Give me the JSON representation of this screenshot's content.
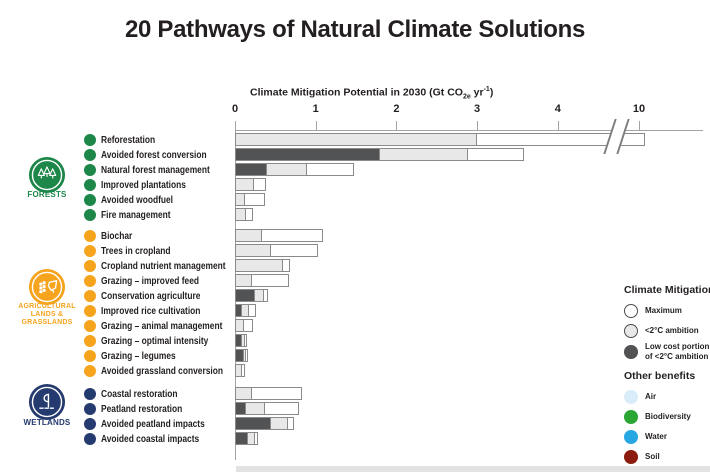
{
  "title": "20 Pathways of Natural Climate Solutions",
  "axis": {
    "title_pre": "Climate Mitigation Potential in 2030 (Gt CO",
    "title_sub": "2e",
    "title_mid": " yr",
    "title_sup": "-1",
    "title_post": ")"
  },
  "colors": {
    "bar_dark": "#525355",
    "bar_light": "#e9e8e8",
    "bar_white": "#ffffff",
    "bar_border": "#8a8a8a",
    "axis": "#a3a3a3",
    "text": "#231f20"
  },
  "legend": {
    "mitigation_title": "Climate Mitigation",
    "mitigation": [
      {
        "label": "Maximum",
        "fill": "#ffffff"
      },
      {
        "label": "<2°C ambition",
        "fill": "#e9e8e8"
      },
      {
        "label": "Low cost portion of <2°C ambition",
        "fill": "#525355"
      }
    ],
    "benefits_title": "Other benefits",
    "benefits": [
      {
        "label": "Air",
        "color": "#d9ecf9"
      },
      {
        "label": "Biodiversity",
        "color": "#2ba634"
      },
      {
        "label": "Water",
        "color": "#28a8e2"
      },
      {
        "label": "Soil",
        "color": "#8c1c0e"
      }
    ]
  },
  "chart_data": {
    "type": "bar",
    "orientation": "horizontal-stacked",
    "unit": "Gt CO2e per year",
    "xticks": [
      "0",
      "1",
      "2",
      "3",
      "4",
      "10"
    ],
    "axis_break_between": [
      4,
      10
    ],
    "series_meaning": [
      "low_cost = low cost portion of <2°C ambition (dark gray)",
      "ambition_2c = <2°C ambition (light gray)",
      "maximum = maximum potential (white)"
    ],
    "groups": [
      {
        "id": "forests",
        "caption_lines": [
          "FORESTS"
        ],
        "color": "#1d8649",
        "icon": "trees-icon",
        "pathways": [
          {
            "name": "Reforestation",
            "low_cost": null,
            "ambition_2c": 3.0,
            "maximum": 10.1,
            "axis_break": true
          },
          {
            "name": "Avoided forest conversion",
            "low_cost": 1.8,
            "ambition_2c": 2.9,
            "maximum": 3.6
          },
          {
            "name": "Natural forest management",
            "low_cost": 0.4,
            "ambition_2c": 0.9,
            "maximum": 1.5
          },
          {
            "name": "Improved plantations",
            "low_cost": null,
            "ambition_2c": 0.24,
            "maximum": 0.4
          },
          {
            "name": "Avoided woodfuel",
            "low_cost": null,
            "ambition_2c": 0.12,
            "maximum": 0.38
          },
          {
            "name": "Fire management",
            "low_cost": null,
            "ambition_2c": 0.13,
            "maximum": 0.23
          }
        ]
      },
      {
        "id": "agriculture",
        "caption_lines": [
          "AGRICULTURAL",
          "LANDS &",
          "GRASSLANDS"
        ],
        "color": "#f6a41e",
        "icon": "grain-livestock-icon",
        "pathways": [
          {
            "name": "Biochar",
            "low_cost": null,
            "ambition_2c": 0.34,
            "maximum": 1.1
          },
          {
            "name": "Trees in cropland",
            "low_cost": null,
            "ambition_2c": 0.44,
            "maximum": 1.04
          },
          {
            "name": "Cropland nutrient management",
            "low_cost": null,
            "ambition_2c": 0.6,
            "maximum": 0.7
          },
          {
            "name": "Grazing – improved feed",
            "low_cost": null,
            "ambition_2c": 0.21,
            "maximum": 0.68
          },
          {
            "name": "Conservation agriculture",
            "low_cost": 0.25,
            "ambition_2c": 0.37,
            "maximum": 0.44
          },
          {
            "name": "Improved rice cultivation",
            "low_cost": 0.09,
            "ambition_2c": 0.19,
            "maximum": 0.28
          },
          {
            "name": "Grazing – animal management",
            "low_cost": null,
            "ambition_2c": 0.11,
            "maximum": 0.23
          },
          {
            "name": "Grazing – optimal intensity",
            "low_cost": 0.08,
            "ambition_2c": 0.13,
            "maximum": 0.17
          },
          {
            "name": "Grazing – legumes",
            "low_cost": 0.11,
            "ambition_2c": 0.13,
            "maximum": 0.15
          },
          {
            "name": "Avoided grassland conversion",
            "low_cost": null,
            "ambition_2c": 0.08,
            "maximum": 0.14
          }
        ]
      },
      {
        "id": "wetlands",
        "caption_lines": [
          "WETLANDS"
        ],
        "color": "#253a6e",
        "icon": "reed-water-icon",
        "pathways": [
          {
            "name": "Coastal restoration",
            "low_cost": null,
            "ambition_2c": 0.21,
            "maximum": 0.84
          },
          {
            "name": "Peatland restoration",
            "low_cost": 0.14,
            "ambition_2c": 0.39,
            "maximum": 0.82
          },
          {
            "name": "Avoided peatland impacts",
            "low_cost": 0.45,
            "ambition_2c": 0.67,
            "maximum": 0.75
          },
          {
            "name": "Avoided coastal impacts",
            "low_cost": 0.16,
            "ambition_2c": 0.26,
            "maximum": 0.31
          }
        ]
      }
    ]
  }
}
